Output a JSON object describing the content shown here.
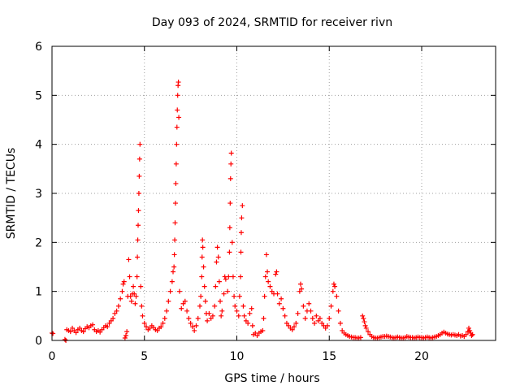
{
  "chart_data": {
    "type": "scatter",
    "title": "Day 093 of 2024, SRMTID for receiver rivn",
    "xlabel": "GPS time / hours",
    "ylabel": "SRMTID / TECUs",
    "xlim": [
      0,
      24
    ],
    "ylim": [
      0,
      6
    ],
    "xticks": [
      "0",
      "5",
      "10",
      "15",
      "20"
    ],
    "yticks": [
      "0",
      "1",
      "2",
      "3",
      "4",
      "5",
      "6"
    ],
    "grid": true,
    "marker": "plus",
    "color": "#ff0000",
    "series": [
      {
        "name": "SRMTID",
        "points": [
          [
            0.0,
            0.15
          ],
          [
            0.05,
            0.14
          ],
          [
            0.7,
            0.02
          ],
          [
            0.75,
            0.0
          ],
          [
            0.8,
            0.22
          ],
          [
            0.9,
            0.2
          ],
          [
            1.0,
            0.18
          ],
          [
            1.1,
            0.25
          ],
          [
            1.2,
            0.2
          ],
          [
            1.3,
            0.16
          ],
          [
            1.4,
            0.22
          ],
          [
            1.5,
            0.25
          ],
          [
            1.6,
            0.2
          ],
          [
            1.7,
            0.18
          ],
          [
            1.8,
            0.24
          ],
          [
            1.9,
            0.28
          ],
          [
            2.0,
            0.26
          ],
          [
            2.1,
            0.3
          ],
          [
            2.2,
            0.32
          ],
          [
            2.3,
            0.22
          ],
          [
            2.4,
            0.18
          ],
          [
            2.5,
            0.2
          ],
          [
            2.6,
            0.17
          ],
          [
            2.7,
            0.22
          ],
          [
            2.8,
            0.26
          ],
          [
            2.9,
            0.3
          ],
          [
            3.0,
            0.28
          ],
          [
            3.1,
            0.35
          ],
          [
            3.2,
            0.4
          ],
          [
            3.3,
            0.45
          ],
          [
            3.4,
            0.55
          ],
          [
            3.5,
            0.6
          ],
          [
            3.6,
            0.7
          ],
          [
            3.7,
            0.85
          ],
          [
            3.8,
            1.0
          ],
          [
            3.85,
            1.15
          ],
          [
            3.9,
            1.2
          ],
          [
            3.95,
            0.05
          ],
          [
            4.0,
            0.1
          ],
          [
            4.05,
            0.18
          ],
          [
            4.1,
            0.9
          ],
          [
            4.15,
            1.65
          ],
          [
            4.2,
            1.3
          ],
          [
            4.25,
            0.9
          ],
          [
            4.3,
            0.8
          ],
          [
            4.35,
            0.95
          ],
          [
            4.4,
            1.1
          ],
          [
            4.45,
            0.95
          ],
          [
            4.5,
            0.75
          ],
          [
            4.55,
            0.9
          ],
          [
            4.6,
            1.3
          ],
          [
            4.62,
            1.7
          ],
          [
            4.64,
            2.05
          ],
          [
            4.66,
            2.35
          ],
          [
            4.68,
            2.65
          ],
          [
            4.7,
            3.0
          ],
          [
            4.72,
            3.35
          ],
          [
            4.74,
            3.7
          ],
          [
            4.76,
            4.0
          ],
          [
            4.8,
            1.1
          ],
          [
            4.85,
            0.7
          ],
          [
            4.9,
            0.5
          ],
          [
            5.0,
            0.35
          ],
          [
            5.1,
            0.28
          ],
          [
            5.2,
            0.22
          ],
          [
            5.3,
            0.25
          ],
          [
            5.4,
            0.3
          ],
          [
            5.5,
            0.26
          ],
          [
            5.6,
            0.22
          ],
          [
            5.7,
            0.2
          ],
          [
            5.8,
            0.25
          ],
          [
            5.9,
            0.28
          ],
          [
            6.0,
            0.35
          ],
          [
            6.1,
            0.45
          ],
          [
            6.2,
            0.6
          ],
          [
            6.3,
            0.8
          ],
          [
            6.4,
            1.0
          ],
          [
            6.5,
            1.2
          ],
          [
            6.55,
            1.4
          ],
          [
            6.6,
            1.5
          ],
          [
            6.62,
            1.75
          ],
          [
            6.64,
            2.05
          ],
          [
            6.66,
            2.4
          ],
          [
            6.68,
            2.8
          ],
          [
            6.7,
            3.2
          ],
          [
            6.72,
            3.6
          ],
          [
            6.74,
            4.0
          ],
          [
            6.76,
            4.35
          ],
          [
            6.78,
            4.7
          ],
          [
            6.8,
            5.0
          ],
          [
            6.82,
            5.2
          ],
          [
            6.84,
            5.27
          ],
          [
            6.86,
            4.55
          ],
          [
            6.9,
            1.0
          ],
          [
            7.0,
            0.65
          ],
          [
            7.1,
            0.75
          ],
          [
            7.2,
            0.8
          ],
          [
            7.3,
            0.6
          ],
          [
            7.4,
            0.45
          ],
          [
            7.5,
            0.35
          ],
          [
            7.6,
            0.28
          ],
          [
            7.7,
            0.2
          ],
          [
            7.8,
            0.3
          ],
          [
            7.9,
            0.45
          ],
          [
            8.0,
            0.7
          ],
          [
            8.05,
            0.9
          ],
          [
            8.1,
            1.3
          ],
          [
            8.12,
            1.7
          ],
          [
            8.14,
            2.05
          ],
          [
            8.16,
            1.9
          ],
          [
            8.2,
            1.5
          ],
          [
            8.25,
            1.1
          ],
          [
            8.3,
            0.8
          ],
          [
            8.35,
            0.55
          ],
          [
            8.4,
            0.4
          ],
          [
            8.5,
            0.55
          ],
          [
            8.6,
            0.45
          ],
          [
            8.7,
            0.5
          ],
          [
            8.8,
            0.7
          ],
          [
            8.85,
            1.1
          ],
          [
            8.9,
            1.6
          ],
          [
            8.95,
            1.9
          ],
          [
            9.0,
            1.7
          ],
          [
            9.05,
            1.2
          ],
          [
            9.1,
            0.8
          ],
          [
            9.15,
            0.5
          ],
          [
            9.2,
            0.6
          ],
          [
            9.3,
            0.95
          ],
          [
            9.35,
            1.3
          ],
          [
            9.4,
            1.25
          ],
          [
            9.5,
            1.0
          ],
          [
            9.55,
            1.3
          ],
          [
            9.6,
            1.8
          ],
          [
            9.62,
            2.3
          ],
          [
            9.64,
            2.8
          ],
          [
            9.66,
            3.3
          ],
          [
            9.68,
            3.6
          ],
          [
            9.7,
            3.82
          ],
          [
            9.75,
            2.0
          ],
          [
            9.8,
            1.3
          ],
          [
            9.85,
            0.9
          ],
          [
            9.9,
            0.7
          ],
          [
            10.0,
            0.6
          ],
          [
            10.1,
            0.5
          ],
          [
            10.15,
            0.9
          ],
          [
            10.2,
            1.3
          ],
          [
            10.22,
            1.8
          ],
          [
            10.24,
            2.2
          ],
          [
            10.26,
            2.5
          ],
          [
            10.3,
            2.75
          ],
          [
            10.35,
            0.7
          ],
          [
            10.4,
            0.5
          ],
          [
            10.5,
            0.4
          ],
          [
            10.6,
            0.35
          ],
          [
            10.7,
            0.55
          ],
          [
            10.8,
            0.65
          ],
          [
            10.85,
            0.3
          ],
          [
            10.9,
            0.12
          ],
          [
            11.0,
            0.15
          ],
          [
            11.1,
            0.1
          ],
          [
            11.2,
            0.15
          ],
          [
            11.3,
            0.18
          ],
          [
            11.4,
            0.2
          ],
          [
            11.45,
            0.45
          ],
          [
            11.5,
            0.9
          ],
          [
            11.55,
            1.3
          ],
          [
            11.6,
            1.75
          ],
          [
            11.65,
            1.4
          ],
          [
            11.7,
            1.2
          ],
          [
            11.8,
            1.1
          ],
          [
            11.9,
            1.0
          ],
          [
            12.0,
            0.95
          ],
          [
            12.1,
            1.35
          ],
          [
            12.15,
            1.4
          ],
          [
            12.2,
            0.95
          ],
          [
            12.3,
            0.75
          ],
          [
            12.4,
            0.85
          ],
          [
            12.5,
            0.65
          ],
          [
            12.6,
            0.5
          ],
          [
            12.7,
            0.35
          ],
          [
            12.8,
            0.3
          ],
          [
            12.9,
            0.25
          ],
          [
            13.0,
            0.22
          ],
          [
            13.1,
            0.28
          ],
          [
            13.2,
            0.35
          ],
          [
            13.3,
            0.55
          ],
          [
            13.4,
            1.0
          ],
          [
            13.45,
            1.15
          ],
          [
            13.5,
            1.05
          ],
          [
            13.6,
            0.7
          ],
          [
            13.7,
            0.45
          ],
          [
            13.8,
            0.6
          ],
          [
            13.9,
            0.75
          ],
          [
            14.0,
            0.6
          ],
          [
            14.1,
            0.45
          ],
          [
            14.2,
            0.35
          ],
          [
            14.3,
            0.5
          ],
          [
            14.4,
            0.4
          ],
          [
            14.5,
            0.45
          ],
          [
            14.6,
            0.35
          ],
          [
            14.7,
            0.3
          ],
          [
            14.8,
            0.25
          ],
          [
            14.9,
            0.3
          ],
          [
            15.0,
            0.45
          ],
          [
            15.1,
            0.7
          ],
          [
            15.2,
            1.0
          ],
          [
            15.25,
            1.15
          ],
          [
            15.3,
            1.1
          ],
          [
            15.4,
            0.9
          ],
          [
            15.5,
            0.6
          ],
          [
            15.6,
            0.35
          ],
          [
            15.7,
            0.2
          ],
          [
            15.8,
            0.15
          ],
          [
            15.9,
            0.12
          ],
          [
            16.0,
            0.1
          ],
          [
            16.1,
            0.08
          ],
          [
            16.2,
            0.07
          ],
          [
            16.3,
            0.06
          ],
          [
            16.4,
            0.06
          ],
          [
            16.5,
            0.05
          ],
          [
            16.6,
            0.05
          ],
          [
            16.7,
            0.06
          ],
          [
            16.8,
            0.5
          ],
          [
            16.85,
            0.45
          ],
          [
            16.9,
            0.38
          ],
          [
            16.95,
            0.3
          ],
          [
            17.0,
            0.25
          ],
          [
            17.1,
            0.18
          ],
          [
            17.2,
            0.12
          ],
          [
            17.3,
            0.08
          ],
          [
            17.4,
            0.06
          ],
          [
            17.5,
            0.05
          ],
          [
            17.6,
            0.05
          ],
          [
            17.7,
            0.06
          ],
          [
            17.8,
            0.07
          ],
          [
            17.9,
            0.08
          ],
          [
            18.0,
            0.08
          ],
          [
            18.1,
            0.09
          ],
          [
            18.2,
            0.08
          ],
          [
            18.3,
            0.07
          ],
          [
            18.4,
            0.06
          ],
          [
            18.5,
            0.05
          ],
          [
            18.6,
            0.06
          ],
          [
            18.7,
            0.07
          ],
          [
            18.8,
            0.06
          ],
          [
            18.9,
            0.05
          ],
          [
            19.0,
            0.05
          ],
          [
            19.1,
            0.06
          ],
          [
            19.2,
            0.08
          ],
          [
            19.3,
            0.07
          ],
          [
            19.4,
            0.06
          ],
          [
            19.5,
            0.06
          ],
          [
            19.6,
            0.05
          ],
          [
            19.7,
            0.06
          ],
          [
            19.8,
            0.07
          ],
          [
            19.9,
            0.06
          ],
          [
            20.0,
            0.06
          ],
          [
            20.1,
            0.05
          ],
          [
            20.2,
            0.06
          ],
          [
            20.3,
            0.07
          ],
          [
            20.4,
            0.06
          ],
          [
            20.5,
            0.05
          ],
          [
            20.6,
            0.06
          ],
          [
            20.7,
            0.07
          ],
          [
            20.8,
            0.08
          ],
          [
            20.9,
            0.1
          ],
          [
            21.0,
            0.12
          ],
          [
            21.1,
            0.15
          ],
          [
            21.2,
            0.17
          ],
          [
            21.3,
            0.15
          ],
          [
            21.4,
            0.13
          ],
          [
            21.5,
            0.12
          ],
          [
            21.6,
            0.11
          ],
          [
            21.7,
            0.12
          ],
          [
            21.8,
            0.11
          ],
          [
            21.9,
            0.1
          ],
          [
            22.0,
            0.12
          ],
          [
            22.1,
            0.09
          ],
          [
            22.2,
            0.1
          ],
          [
            22.3,
            0.08
          ],
          [
            22.4,
            0.12
          ],
          [
            22.5,
            0.18
          ],
          [
            22.55,
            0.25
          ],
          [
            22.6,
            0.2
          ],
          [
            22.65,
            0.15
          ],
          [
            22.7,
            0.1
          ],
          [
            22.75,
            0.12
          ]
        ]
      }
    ]
  }
}
